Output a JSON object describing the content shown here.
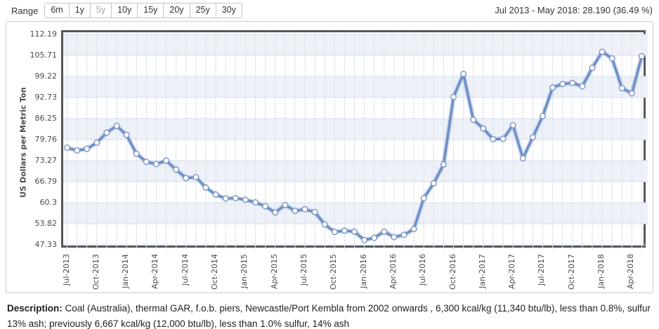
{
  "header": {
    "range_label": "Range",
    "range_buttons": [
      "6m",
      "1y",
      "5y",
      "10y",
      "15y",
      "20y",
      "25y",
      "30y"
    ],
    "active_range": "5y",
    "summary": "Jul 2013 - May 2018: 28.190 (36.49 %)"
  },
  "chart_data": {
    "type": "line",
    "title": "",
    "xlabel": "",
    "ylabel": "US Dollars per Metric Ton",
    "y_ticks": [
      112.19,
      105.71,
      99.22,
      92.73,
      86.25,
      79.76,
      73.27,
      66.79,
      60.3,
      53.82,
      47.33
    ],
    "ylim": [
      47.33,
      112.19
    ],
    "x_tick_every": 3,
    "grid": true,
    "legend_position": "none",
    "line_color": "#6e8fc7",
    "line_glow_color": "#b3c4e0",
    "marker_style": "white-circle",
    "marker_stroke": "#7b94c4",
    "band_color": "#eef1f8",
    "vgrid_color": "#dde5f1",
    "hgrid_color": "#d6dfec",
    "x": [
      "Jul-2013",
      "Aug-2013",
      "Sep-2013",
      "Oct-2013",
      "Nov-2013",
      "Dec-2013",
      "Jan-2014",
      "Feb-2014",
      "Mar-2014",
      "Apr-2014",
      "May-2014",
      "Jun-2014",
      "Jul-2014",
      "Aug-2014",
      "Sep-2014",
      "Oct-2014",
      "Nov-2014",
      "Dec-2014",
      "Jan-2015",
      "Feb-2015",
      "Mar-2015",
      "Apr-2015",
      "May-2015",
      "Jun-2015",
      "Jul-2015",
      "Aug-2015",
      "Sep-2015",
      "Oct-2015",
      "Nov-2015",
      "Dec-2015",
      "Jan-2016",
      "Feb-2016",
      "Mar-2016",
      "Apr-2016",
      "May-2016",
      "Jun-2016",
      "Jul-2016",
      "Aug-2016",
      "Sep-2016",
      "Oct-2016",
      "Nov-2016",
      "Dec-2016",
      "Jan-2017",
      "Feb-2017",
      "Mar-2017",
      "Apr-2017",
      "May-2017",
      "Jun-2017",
      "Jul-2017",
      "Aug-2017",
      "Sep-2017",
      "Oct-2017",
      "Nov-2017",
      "Dec-2017",
      "Jan-2018",
      "Feb-2018",
      "Mar-2018",
      "Apr-2018",
      "May-2018"
    ],
    "values": [
      77.25,
      76.4,
      76.9,
      78.8,
      81.9,
      84.0,
      81.2,
      75.4,
      72.9,
      72.2,
      73.3,
      70.5,
      67.9,
      68.2,
      65.0,
      62.8,
      61.6,
      61.7,
      61.2,
      60.4,
      59.2,
      57.3,
      59.6,
      57.8,
      58.3,
      57.4,
      53.6,
      51.3,
      51.7,
      51.4,
      48.8,
      49.5,
      51.4,
      49.7,
      50.4,
      52.2,
      61.7,
      66.3,
      72.1,
      92.9,
      100.0,
      85.9,
      83.2,
      79.9,
      80.0,
      84.2,
      74.0,
      80.5,
      87.0,
      95.8,
      96.9,
      97.2,
      96.2,
      101.9,
      106.8,
      104.8,
      95.6,
      94.0,
      105.44
    ]
  },
  "description": {
    "label": "Description:",
    "text": " Coal (Australia), thermal GAR, f.o.b. piers, Newcastle/Port Kembla from 2002 onwards , 6,300 kcal/kg (11,340 btu/lb), less than 0.8%, sulfur 13% ash; previously 6,667 kcal/kg (12,000 btu/lb), less than 1.0% sulfur, 14% ash"
  }
}
